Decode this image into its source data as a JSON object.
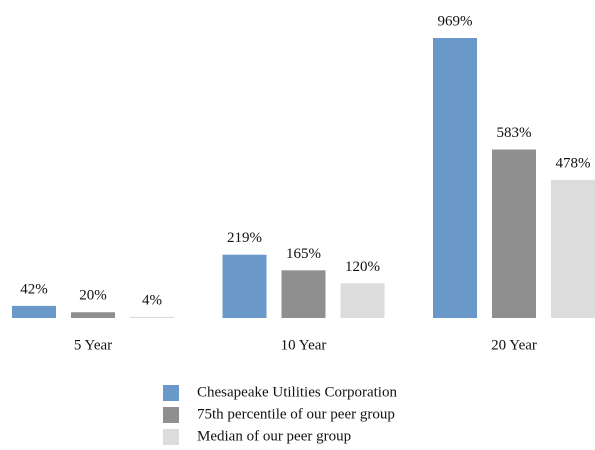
{
  "chart_data": {
    "type": "bar",
    "categories": [
      "5 Year",
      "10 Year",
      "20 Year"
    ],
    "series": [
      {
        "name": "Chesapeake Utilities Corporation",
        "color": "#6a98c9",
        "values": [
          42,
          219,
          969
        ],
        "value_labels": [
          "42%",
          "219%",
          "969%"
        ]
      },
      {
        "name": "75th percentile of our peer group",
        "color": "#8f8f8f",
        "values": [
          20,
          165,
          583
        ],
        "value_labels": [
          "20%",
          "165%",
          "583%"
        ]
      },
      {
        "name": "Median of our peer group",
        "color": "#dcdcdc",
        "values": [
          4,
          120,
          478
        ],
        "value_labels": [
          "4%",
          "120%",
          "478%"
        ]
      }
    ],
    "legend": "bottom"
  }
}
